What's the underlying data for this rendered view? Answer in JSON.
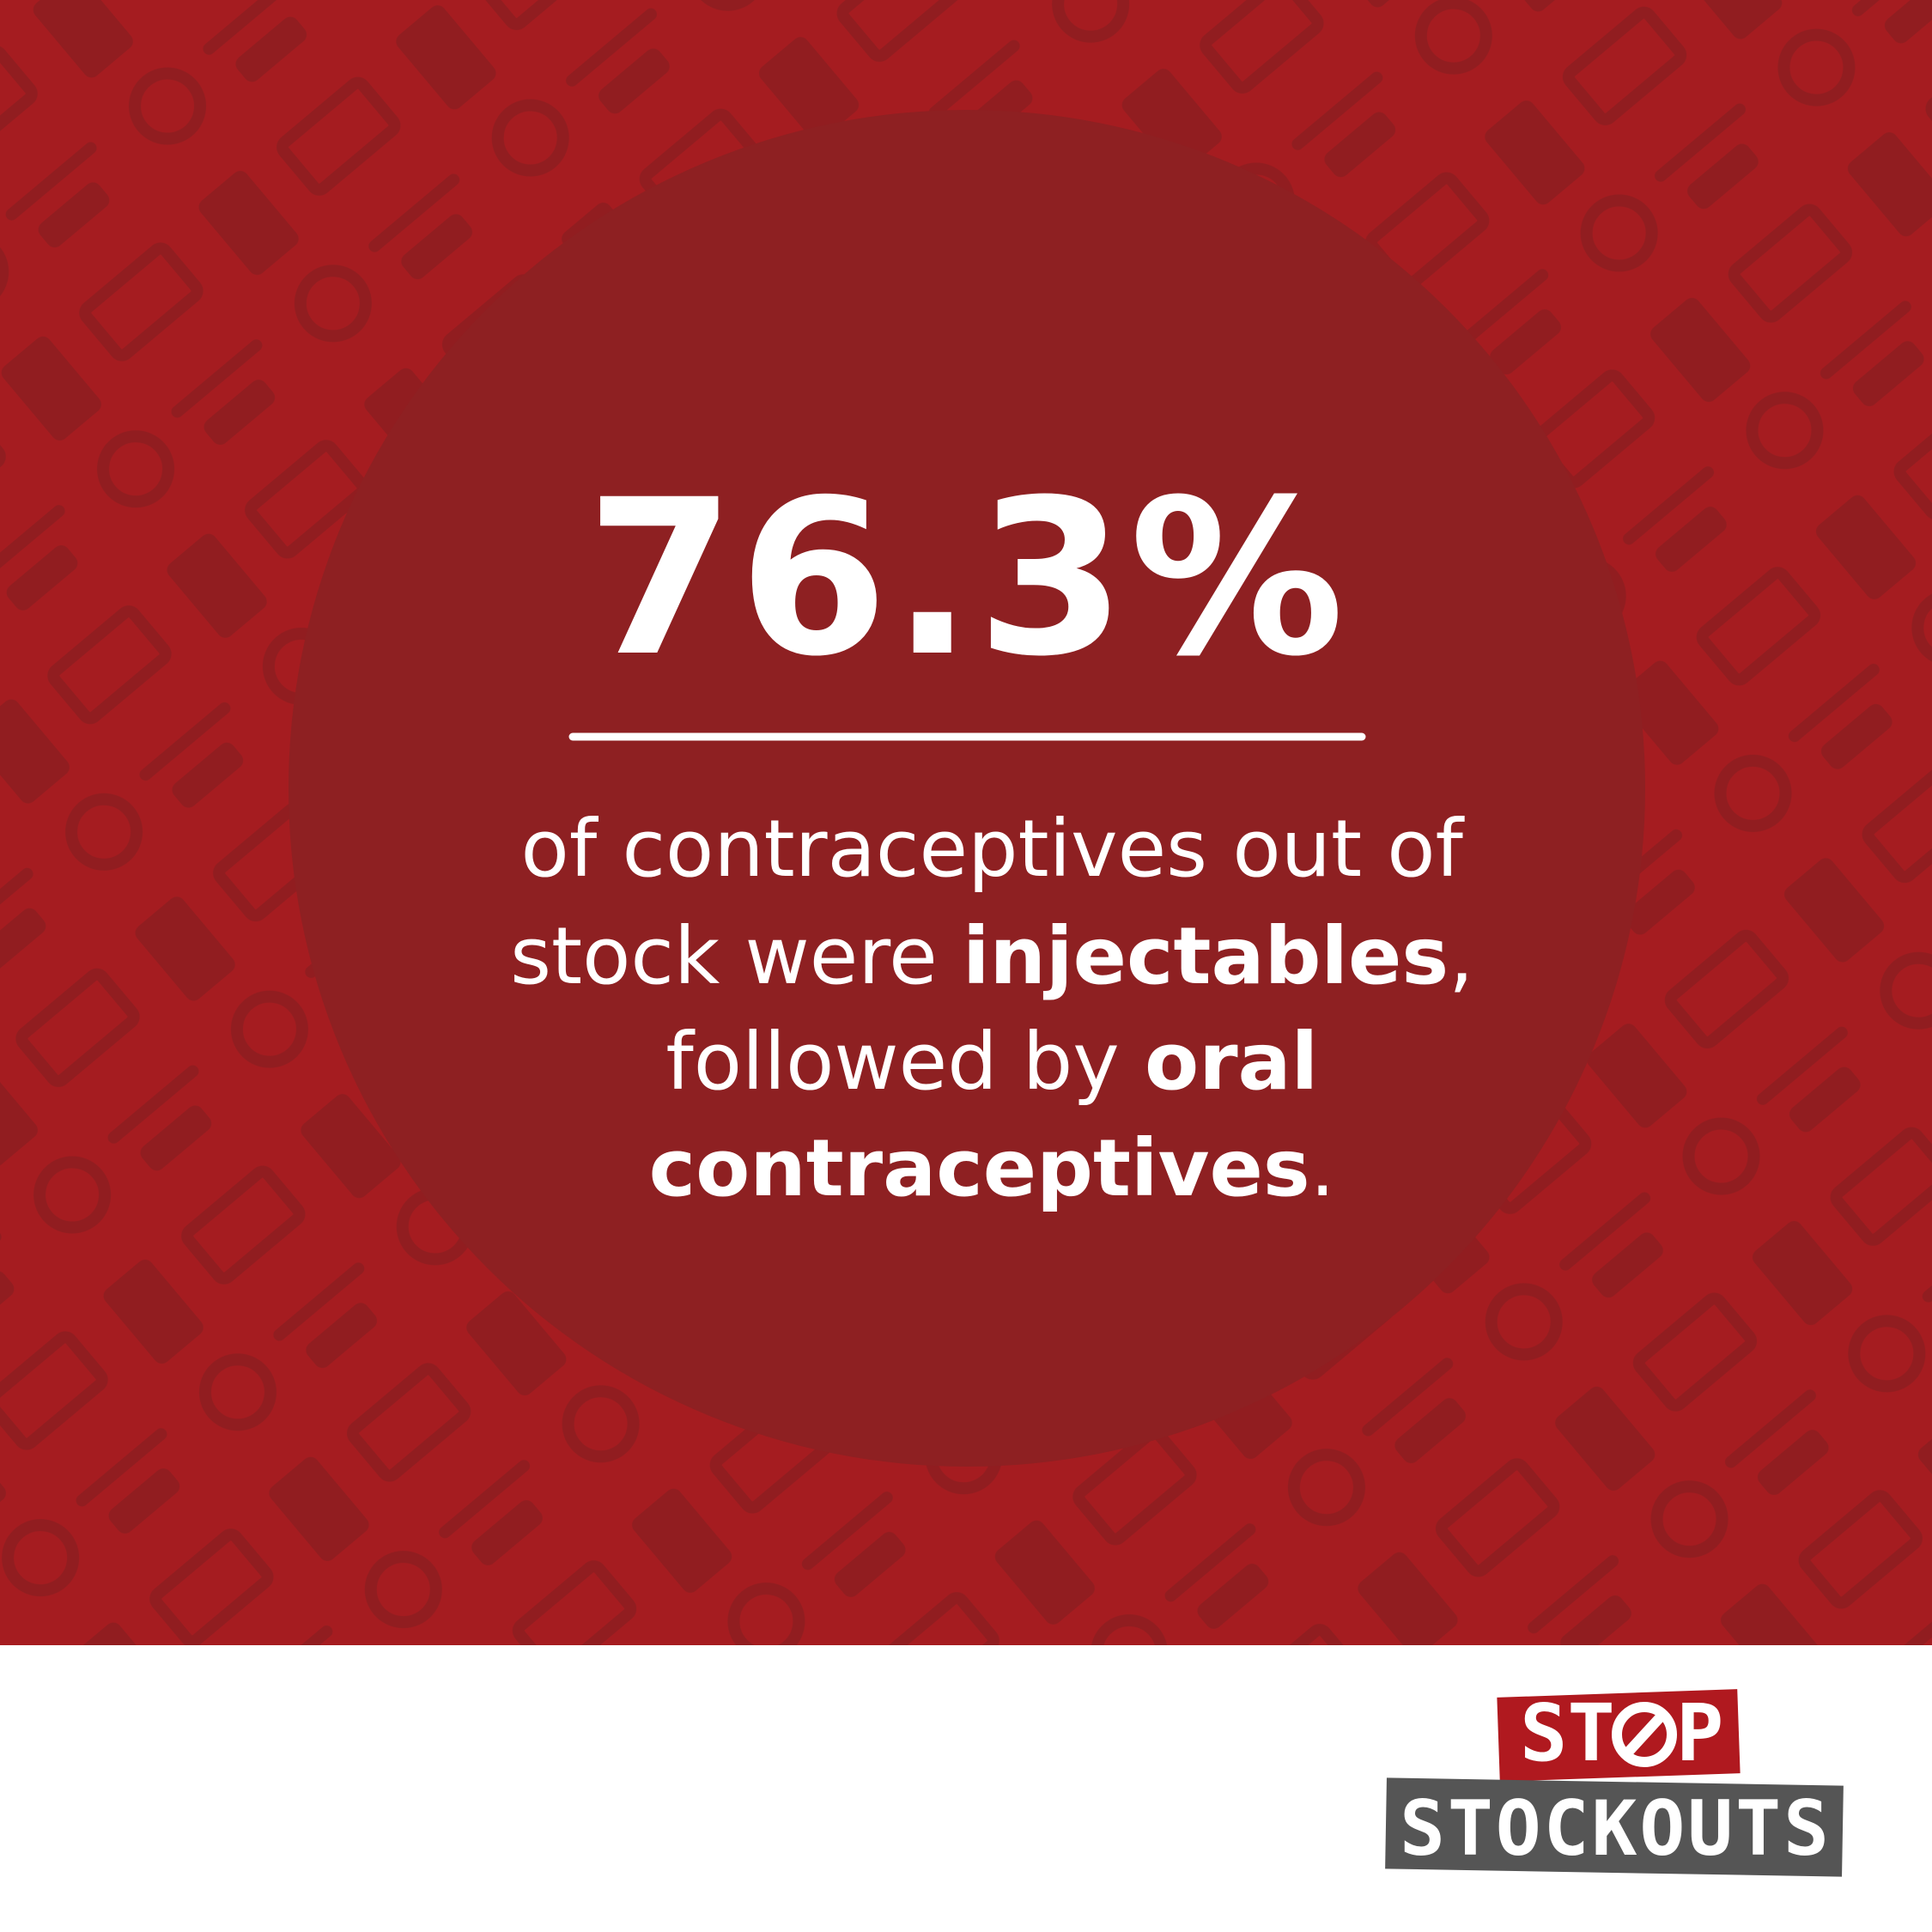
{
  "stat": "76.3%",
  "body": {
    "lines": [
      [
        "of contraceptives out of"
      ],
      [
        "stock were ",
        "injectables",
        ","
      ],
      [
        "followed by ",
        "oral"
      ],
      [
        "contraceptives",
        "."
      ]
    ]
  },
  "logo": {
    "top_left": "ST",
    "top_right": "P",
    "bottom": "STOCKOUTS"
  }
}
